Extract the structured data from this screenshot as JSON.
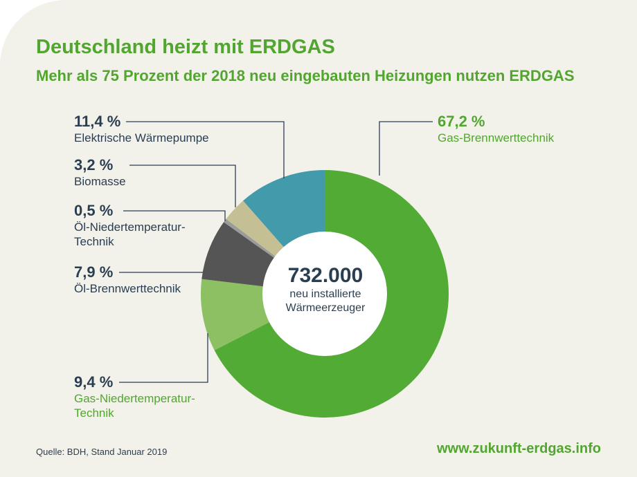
{
  "header": {
    "title": "Deutschland heizt mit ERDGAS",
    "subtitle": "Mehr als 75 Prozent der 2018 neu eingebauten Heizungen nutzen ERDGAS"
  },
  "chart_data": {
    "type": "pie",
    "variant": "donut",
    "title": "Deutschland heizt mit ERDGAS",
    "subtitle": "Mehr als 75 Prozent der 2018 neu eingebauten Heizungen nutzen ERDGAS",
    "unit": "%",
    "center_value": "732.000",
    "center_label_1": "neu installierte",
    "center_label_2": "Wärmeerzeuger",
    "slices": [
      {
        "label": "Gas-Brennwerttechnik",
        "value": 67.2,
        "display": "67,2 %",
        "color": "#52ab34"
      },
      {
        "label_1": "Gas-Niedertemperatur-",
        "label_2": "Technik",
        "value": 9.4,
        "display": "9,4 %",
        "color": "#8cc063"
      },
      {
        "label": "Öl-Brennwerttechnik",
        "value": 7.9,
        "display": "7,9 %",
        "color": "#555555"
      },
      {
        "label_1": "Öl-Niedertemperatur-",
        "label_2": "Technik",
        "value": 0.5,
        "display": "0,5 %",
        "color": "#9b9b9b"
      },
      {
        "label": "Biomasse",
        "value": 3.2,
        "display": "3,2 %",
        "color": "#c4c094"
      },
      {
        "label": "Elektrische Wärmepumpe",
        "value": 11.4,
        "display": "11,4 %",
        "color": "#439aab"
      }
    ]
  },
  "footer": {
    "source": "Quelle: BDH, Stand Januar 2019",
    "url": "www.zukunft-erdgas.info"
  }
}
